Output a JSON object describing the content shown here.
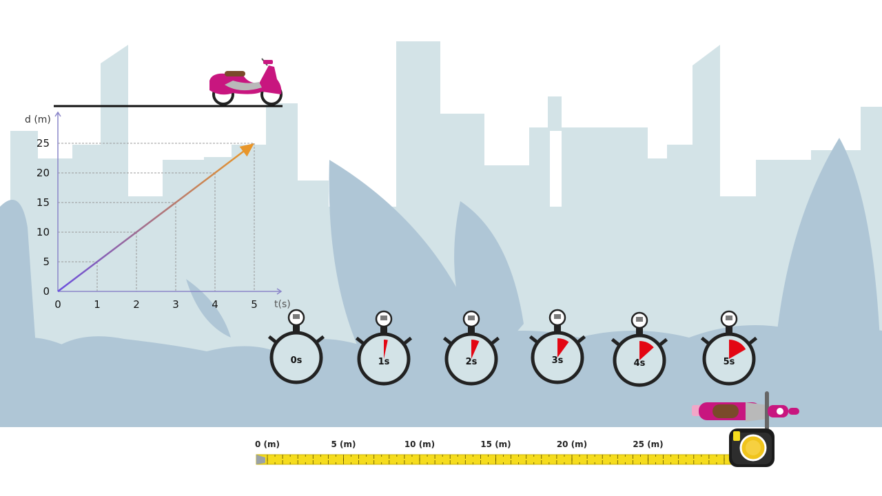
{
  "chart_data": {
    "type": "line",
    "ylabel": "d (m)",
    "xlabel": "t(s)",
    "x_ticks": [
      "0",
      "1",
      "2",
      "3",
      "4",
      "5"
    ],
    "y_ticks": [
      "0",
      "5",
      "10",
      "15",
      "20",
      "25"
    ],
    "x": [
      0,
      1,
      2,
      3,
      4,
      5
    ],
    "y": [
      0,
      5,
      10,
      15,
      20,
      25
    ],
    "xlim": [
      0,
      5
    ],
    "ylim": [
      0,
      25
    ],
    "grid": "dashed guides to each point"
  },
  "stopwatches": [
    {
      "label": "0s",
      "seconds": 0
    },
    {
      "label": "1s",
      "seconds": 1
    },
    {
      "label": "2s",
      "seconds": 2
    },
    {
      "label": "3s",
      "seconds": 3
    },
    {
      "label": "4s",
      "seconds": 4
    },
    {
      "label": "5s",
      "seconds": 5
    }
  ],
  "tape": {
    "labels": [
      "0 (m)",
      "5 (m)",
      "10 (m)",
      "15 (m)",
      "20 (m)",
      "25 (m)"
    ],
    "values_m": [
      0,
      5,
      10,
      15,
      20,
      25
    ]
  },
  "colors": {
    "sky_building": "#d3e3e7",
    "foliage": "#afc6d6",
    "line_start": "#6a4fe0",
    "line_end": "#e8962a",
    "stopwatch_fill": "#e30613",
    "tape_yellow": "#f5dc1e",
    "scooter_body": "#c8167f"
  }
}
